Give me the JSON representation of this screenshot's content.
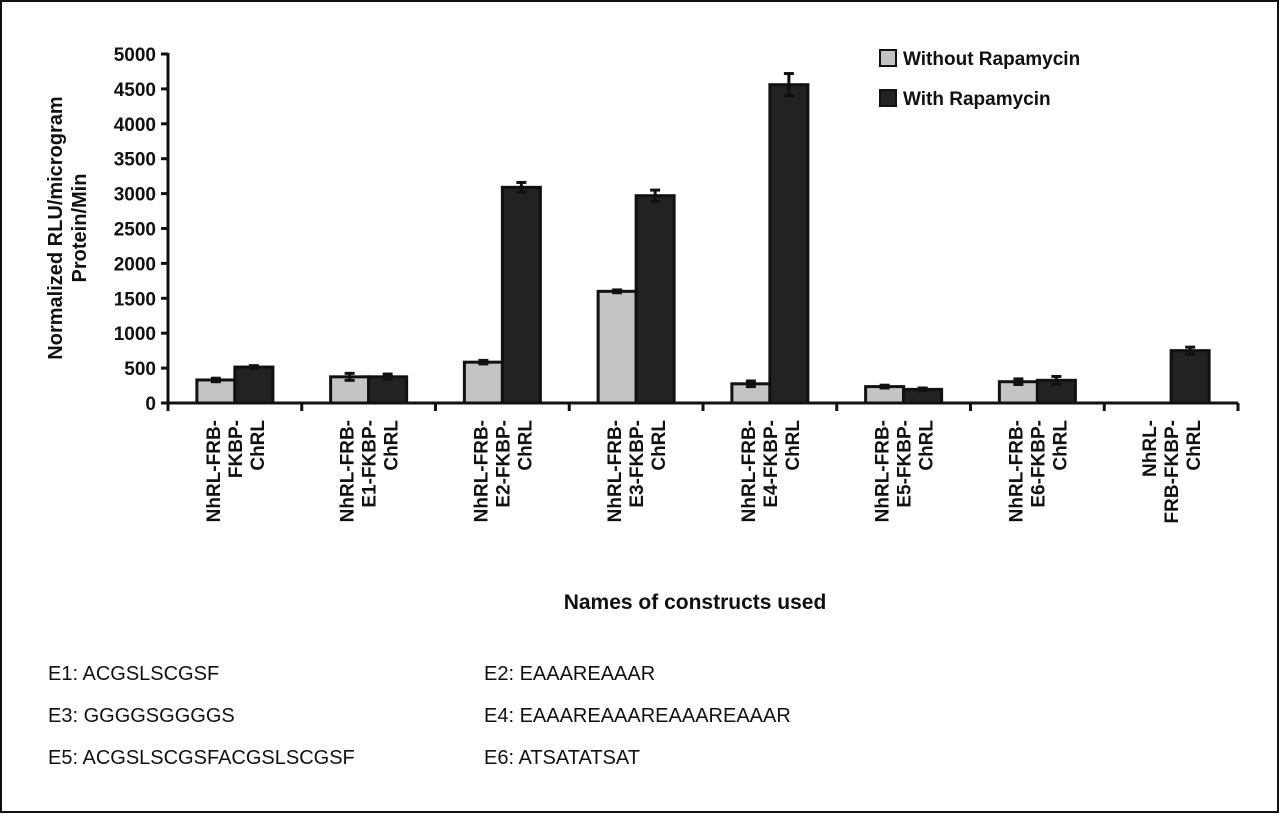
{
  "chart_data": {
    "type": "bar",
    "ylabel": [
      "Normalized RLU/microgram",
      "Protein/Min"
    ],
    "xlabel": "Names of constructs used",
    "ylim": [
      0,
      5000
    ],
    "yticks": [
      0,
      500,
      1000,
      1500,
      2000,
      2500,
      3000,
      3500,
      4000,
      4500,
      5000
    ],
    "grid": false,
    "legend_position": "top-right",
    "categories": [
      [
        "NhRL-FRB-",
        "FKBP-",
        "ChRL"
      ],
      [
        "NhRL-FRB-",
        "E1-FKBP-",
        "ChRL"
      ],
      [
        "NhRL-FRB-",
        "E2-FKBP-",
        "ChRL"
      ],
      [
        "NhRL-FRB-",
        "E3-FKBP-",
        "ChRL"
      ],
      [
        "NhRL-FRB-",
        "E4-FKBP-",
        "ChRL"
      ],
      [
        "NhRL-FRB-",
        "E5-FKBP-",
        "ChRL"
      ],
      [
        "NhRL-FRB-",
        "E6-FKBP-",
        "ChRL"
      ],
      [
        "NhRL-",
        "FRB-FKBP-",
        "ChRL"
      ]
    ],
    "series": [
      {
        "name": "Without Rapamycin",
        "color": "#c4c4c4",
        "values": [
          330,
          375,
          585,
          1600,
          275,
          235,
          305,
          0
        ],
        "errors": [
          25,
          50,
          25,
          20,
          40,
          20,
          40,
          0
        ]
      },
      {
        "name": "With Rapamycin",
        "color": "#222222",
        "values": [
          515,
          375,
          3090,
          2970,
          4560,
          195,
          325,
          750
        ],
        "errors": [
          20,
          40,
          70,
          80,
          160,
          20,
          55,
          50
        ]
      }
    ]
  },
  "footnotes": [
    {
      "left": "E1: ACGSLSCGSF",
      "right": "E2: EAAAREAAAR"
    },
    {
      "left": "E3: GGGGSGGGGS",
      "right": "E4: EAAAREAAAREAAAREAAAR"
    },
    {
      "left": "E5: ACGSLSCGSFACGSLSCGSF",
      "right": "E6: ATSATATSAT"
    }
  ]
}
